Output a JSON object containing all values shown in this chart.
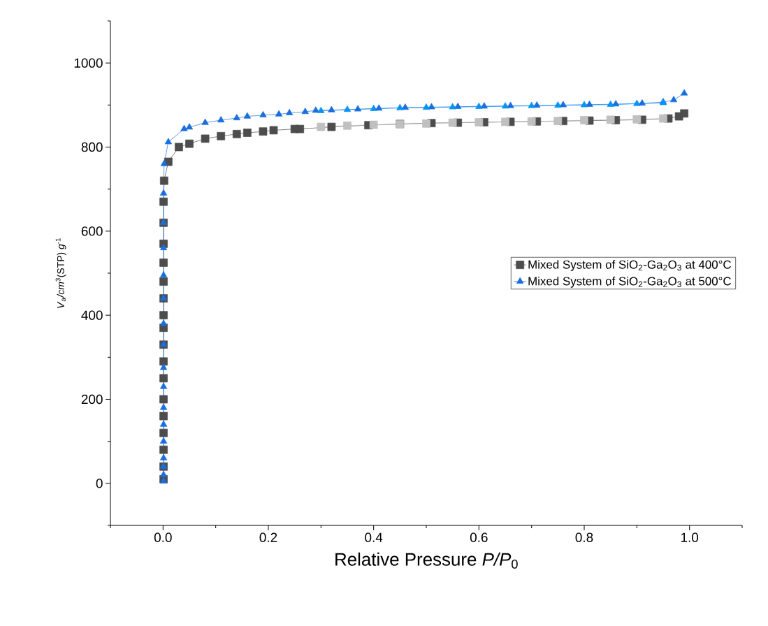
{
  "chart_data": {
    "type": "line",
    "xlabel": "Relative Pressure *P/P*$_{0}$",
    "ylabel": "*V*$_{a}$*/cm*$^{3}$(STP) *g*$^{-1}$",
    "xlim": [
      -0.1,
      1.1
    ],
    "ylim": [
      -100,
      1100
    ],
    "xticks": [
      {
        "value": -0.1,
        "label": null
      },
      {
        "value": 0,
        "label": "0.0"
      },
      {
        "value": 0.1,
        "label": null
      },
      {
        "value": 0.2,
        "label": "0.2"
      },
      {
        "value": 0.3,
        "label": null
      },
      {
        "value": 0.4,
        "label": "0.4"
      },
      {
        "value": 0.5,
        "label": null
      },
      {
        "value": 0.6,
        "label": "0.6"
      },
      {
        "value": 0.7,
        "label": null
      },
      {
        "value": 0.8,
        "label": "0.8"
      },
      {
        "value": 0.9,
        "label": null
      },
      {
        "value": 1,
        "label": "1.0"
      },
      {
        "value": 1.1,
        "label": null
      }
    ],
    "yticks": [
      {
        "value": -100,
        "label": null
      },
      0,
      {
        "value": 100,
        "label": null
      },
      200,
      {
        "value": 300,
        "label": null
      },
      400,
      {
        "value": 500,
        "label": null
      },
      600,
      {
        "value": 700,
        "label": null
      },
      800,
      {
        "value": 900,
        "label": null
      },
      1000,
      {
        "value": 1100,
        "label": null
      }
    ],
    "grid": false,
    "legend": "right",
    "line_style": "solid",
    "series": [
      {
        "name": "Mixed System of SiO$_{2}$-Ga$_{2}$O$_{3}$ at 400°C",
        "color": "#4d4d4d",
        "marker": "square",
        "x": [
          0.001,
          0.001,
          0.001,
          0.001,
          0.001,
          0.001,
          0.001,
          0.001,
          0.001,
          0.001,
          0.001,
          0.001,
          0.001,
          0.001,
          0.001,
          0.001,
          0.001,
          0.002,
          0.01,
          0.03,
          0.05,
          0.08,
          0.11,
          0.14,
          0.16,
          0.19,
          0.21,
          0.25,
          0.26,
          0.32,
          0.39,
          0.45,
          0.51,
          0.56,
          0.61,
          0.66,
          0.71,
          0.76,
          0.81,
          0.86,
          0.91,
          0.96,
          0.98,
          0.99
        ],
        "values": [
          10,
          40,
          80,
          120,
          160,
          200,
          250,
          290,
          330,
          370,
          400,
          440,
          480,
          525,
          570,
          620,
          670,
          720,
          765,
          800,
          808,
          820,
          826,
          831,
          834,
          837,
          840,
          843,
          843,
          848,
          852,
          855,
          857,
          858,
          859,
          860,
          861,
          862,
          863,
          864,
          865,
          868,
          873,
          880
        ]
      },
      {
        "color": "#c0c0c0",
        "marker": "square",
        "x": [
          0.95,
          0.9,
          0.85,
          0.8,
          0.75,
          0.7,
          0.65,
          0.6,
          0.55,
          0.5,
          0.45,
          0.4,
          0.35,
          0.3
        ],
        "values": [
          868,
          866,
          865,
          864,
          862,
          861,
          860,
          859,
          858,
          856,
          854,
          853,
          851,
          848
        ]
      },
      {
        "name": "Mixed System of SiO$_{2}$-Ga$_{2}$O$_{3}$ at 500°C",
        "color": "#1a6fdf",
        "marker": "triangle",
        "x": [
          0.001,
          0.001,
          0.001,
          0.001,
          0.001,
          0.001,
          0.001,
          0.001,
          0.001,
          0.001,
          0.001,
          0.001,
          0.001,
          0.001,
          0.001,
          0.001,
          0.002,
          0.01,
          0.04,
          0.05,
          0.08,
          0.11,
          0.14,
          0.16,
          0.19,
          0.22,
          0.24,
          0.27,
          0.29,
          0.32,
          0.37,
          0.41,
          0.46,
          0.51,
          0.56,
          0.61,
          0.66,
          0.71,
          0.76,
          0.81,
          0.86,
          0.91,
          0.95,
          0.97,
          0.99
        ],
        "values": [
          5,
          20,
          40,
          60,
          100,
          140,
          180,
          230,
          275,
          330,
          380,
          440,
          495,
          560,
          620,
          690,
          760,
          812,
          843,
          847,
          858,
          864,
          869,
          873,
          876,
          878,
          881,
          884,
          887,
          888,
          890,
          892,
          894,
          895,
          896,
          897,
          898,
          899,
          900,
          901,
          902,
          904,
          907,
          912,
          928
        ]
      },
      {
        "color": "#0a93f5",
        "marker": "triangle",
        "x": [
          0.95,
          0.9,
          0.85,
          0.8,
          0.75,
          0.7,
          0.65,
          0.6,
          0.55,
          0.5,
          0.45,
          0.4,
          0.35,
          0.3
        ],
        "values": [
          905,
          903,
          901,
          900,
          899,
          898,
          897,
          896,
          895,
          894,
          893,
          891,
          889,
          886
        ]
      }
    ]
  }
}
